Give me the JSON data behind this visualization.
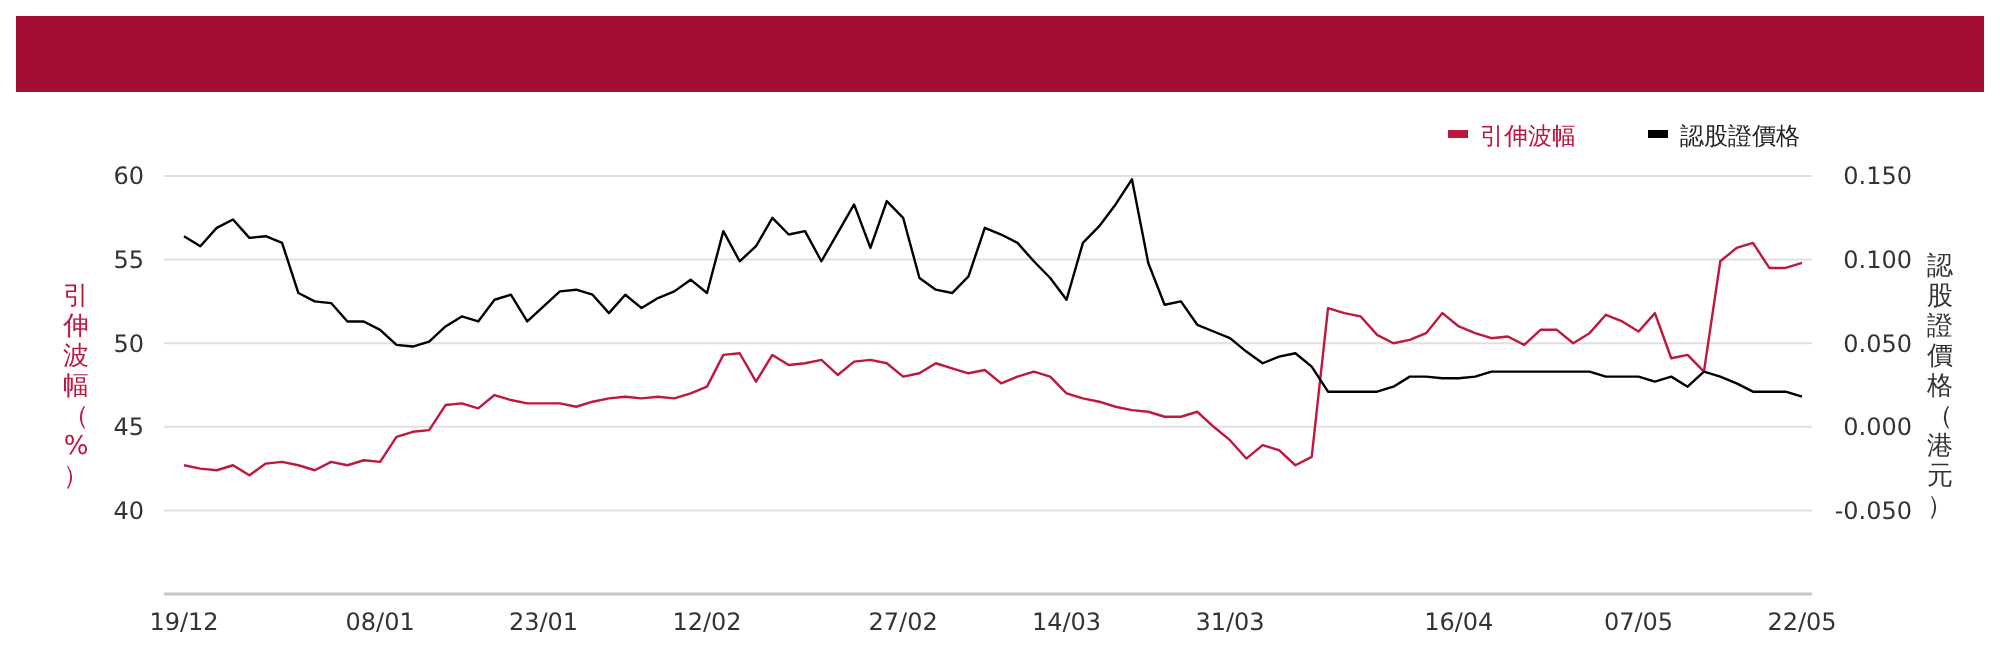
{
  "chart_data": {
    "type": "line",
    "categories": [
      "19/12",
      null,
      null,
      null,
      null,
      null,
      null,
      null,
      null,
      null,
      null,
      null,
      "08/01",
      null,
      null,
      null,
      null,
      null,
      null,
      null,
      null,
      null,
      "23/01",
      null,
      null,
      null,
      null,
      null,
      null,
      null,
      null,
      null,
      "12/02",
      null,
      null,
      null,
      null,
      null,
      null,
      null,
      null,
      null,
      null,
      null,
      "27/02",
      null,
      null,
      null,
      null,
      null,
      null,
      null,
      null,
      null,
      "14/03",
      null,
      null,
      null,
      null,
      null,
      null,
      null,
      null,
      null,
      "31/03",
      null,
      null,
      null,
      null,
      null,
      null,
      null,
      null,
      null,
      null,
      null,
      null,
      null,
      "16/04",
      null,
      null,
      null,
      null,
      null,
      null,
      null,
      null,
      null,
      null,
      "07/05",
      null,
      null,
      null,
      null,
      null,
      null,
      null,
      null,
      null,
      "22/05"
    ],
    "series": [
      {
        "name": "引伸波幅",
        "color": "#c0173f",
        "axis": "y",
        "values": [
          42.7,
          42.5,
          42.4,
          42.7,
          42.1,
          42.8,
          42.9,
          42.7,
          42.4,
          42.9,
          42.7,
          43.0,
          42.9,
          44.4,
          44.7,
          44.8,
          46.3,
          46.4,
          46.1,
          46.9,
          46.6,
          46.4,
          46.4,
          46.4,
          46.2,
          46.5,
          46.7,
          46.8,
          46.7,
          46.8,
          46.7,
          47.0,
          47.4,
          49.3,
          49.4,
          47.7,
          49.3,
          48.7,
          48.8,
          49.0,
          48.1,
          48.9,
          49.0,
          48.8,
          48.0,
          48.2,
          48.8,
          48.5,
          48.2,
          48.4,
          47.6,
          48.0,
          48.3,
          48.0,
          47.0,
          46.7,
          46.5,
          46.2,
          46.0,
          45.9,
          45.6,
          45.6,
          45.9,
          45.0,
          44.2,
          43.1,
          43.9,
          43.6,
          42.7,
          43.2,
          52.1,
          51.8,
          51.6,
          50.5,
          50.0,
          50.2,
          50.6,
          51.8,
          51.0,
          50.6,
          50.3,
          50.4,
          49.9,
          50.8,
          50.8,
          50.0,
          50.6,
          51.7,
          51.3,
          50.7,
          51.8,
          49.1,
          49.3,
          48.3,
          54.9,
          55.7,
          56.0,
          54.5,
          54.5,
          54.8
        ]
      },
      {
        "name": "認股證價格",
        "color": "#000000",
        "axis": "y2",
        "values": [
          0.114,
          0.108,
          0.119,
          0.124,
          0.113,
          0.114,
          0.11,
          0.08,
          0.075,
          0.074,
          0.063,
          0.063,
          0.058,
          0.049,
          0.048,
          0.051,
          0.06,
          0.066,
          0.063,
          0.076,
          0.079,
          0.063,
          0.072,
          0.081,
          0.082,
          0.079,
          0.068,
          0.079,
          0.071,
          0.077,
          0.081,
          0.088,
          0.08,
          0.117,
          0.099,
          0.108,
          0.125,
          0.115,
          0.117,
          0.099,
          0.116,
          0.133,
          0.107,
          0.135,
          0.125,
          0.089,
          0.082,
          0.08,
          0.09,
          0.119,
          0.115,
          0.11,
          0.099,
          0.089,
          0.076,
          0.11,
          0.12,
          0.133,
          0.148,
          0.098,
          0.073,
          0.075,
          0.061,
          0.057,
          0.053,
          0.045,
          0.038,
          0.042,
          0.044,
          0.036,
          0.021,
          0.021,
          0.021,
          0.021,
          0.024,
          0.03,
          0.03,
          0.029,
          0.029,
          0.03,
          0.033,
          0.033,
          0.033,
          0.033,
          0.033,
          0.033,
          0.033,
          0.03,
          0.03,
          0.03,
          0.027,
          0.03,
          0.024,
          0.033,
          0.03,
          0.026,
          0.021,
          0.021,
          0.021,
          0.018
        ]
      }
    ],
    "ylabel": "引伸波幅（%）",
    "y2label": "認股證價格（港元）",
    "ylim": [
      35,
      60
    ],
    "yticks": [
      40,
      45,
      50,
      55,
      60
    ],
    "y2lim": [
      -0.1,
      0.15
    ],
    "y2ticks": [
      {
        "value": -0.05,
        "label": "-0.050"
      },
      {
        "value": 0,
        "label": "0.000"
      },
      {
        "value": 0.05,
        "label": "0.050"
      },
      {
        "value": 0.1,
        "label": "0.100"
      },
      {
        "value": 0.15,
        "label": "0.150"
      }
    ],
    "grid": "y",
    "legend": "top right",
    "marker": "none",
    "line_style": "solid"
  }
}
